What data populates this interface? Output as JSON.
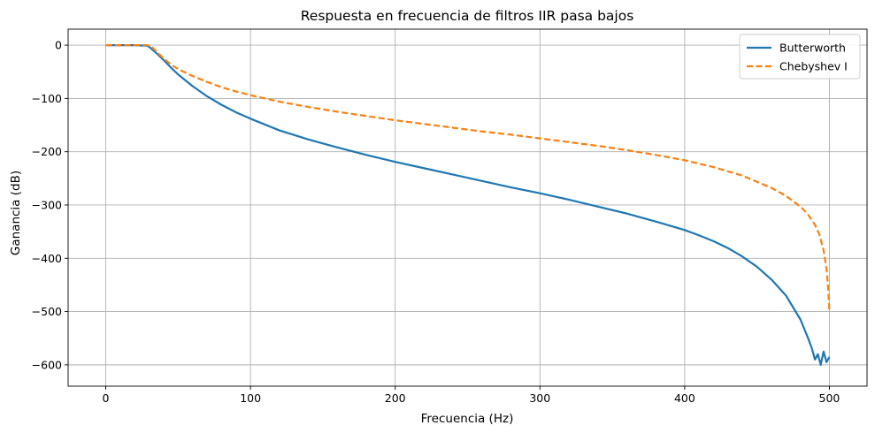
{
  "chart_data": {
    "type": "line",
    "title": "Respuesta en frecuencia de filtros IIR pasa bajos",
    "xlabel": "Frecuencia (Hz)",
    "ylabel": "Ganancia (dB)",
    "xlim": [
      -26,
      526
    ],
    "ylim": [
      -640,
      30
    ],
    "x_ticks": [
      0,
      100,
      200,
      300,
      400,
      500
    ],
    "x_tick_labels": [
      "0",
      "100",
      "200",
      "300",
      "400",
      "500"
    ],
    "y_ticks": [
      0,
      -100,
      -200,
      -300,
      -400,
      -500,
      -600
    ],
    "y_tick_labels": [
      "0",
      "−100",
      "−200",
      "−300",
      "−400",
      "−500",
      "−600"
    ],
    "grid": true,
    "legend_position": "top-right",
    "series": [
      {
        "name": "Butterworth",
        "color": "#1f77b4",
        "style": "solid",
        "x": [
          0,
          10,
          20,
          28,
          30,
          32,
          35,
          40,
          45,
          50,
          60,
          70,
          80,
          90,
          100,
          120,
          140,
          160,
          180,
          200,
          220,
          240,
          260,
          280,
          300,
          320,
          340,
          360,
          380,
          400,
          410,
          420,
          430,
          440,
          450,
          460,
          470,
          480,
          485,
          488,
          490,
          492,
          494,
          496,
          498,
          500
        ],
        "y": [
          0,
          0,
          0,
          -1,
          -3,
          -8,
          -15,
          -28,
          -42,
          -55,
          -77,
          -96,
          -112,
          -126,
          -138,
          -160,
          -177,
          -192,
          -206,
          -219,
          -231,
          -243,
          -255,
          -267,
          -278,
          -290,
          -303,
          -316,
          -331,
          -347,
          -357,
          -368,
          -381,
          -397,
          -416,
          -440,
          -470,
          -515,
          -548,
          -570,
          -590,
          -580,
          -600,
          -575,
          -595,
          -585
        ]
      },
      {
        "name": "Chebyshev I",
        "color": "#ff7f0e",
        "style": "dashed",
        "x": [
          0,
          10,
          20,
          28,
          30,
          32,
          35,
          40,
          45,
          50,
          60,
          70,
          80,
          90,
          100,
          120,
          140,
          160,
          180,
          200,
          220,
          240,
          260,
          280,
          300,
          320,
          340,
          360,
          380,
          400,
          420,
          440,
          460,
          470,
          480,
          485,
          490,
          493,
          496,
          498,
          499,
          500
        ],
        "y": [
          0,
          0,
          0,
          0,
          -1,
          -4,
          -12,
          -25,
          -36,
          -45,
          -58,
          -69,
          -79,
          -87,
          -94,
          -106,
          -116,
          -125,
          -133,
          -141,
          -148,
          -155,
          -162,
          -168,
          -175,
          -182,
          -189,
          -197,
          -206,
          -216,
          -229,
          -245,
          -268,
          -283,
          -303,
          -317,
          -337,
          -355,
          -385,
          -420,
          -450,
          -500
        ]
      }
    ]
  }
}
